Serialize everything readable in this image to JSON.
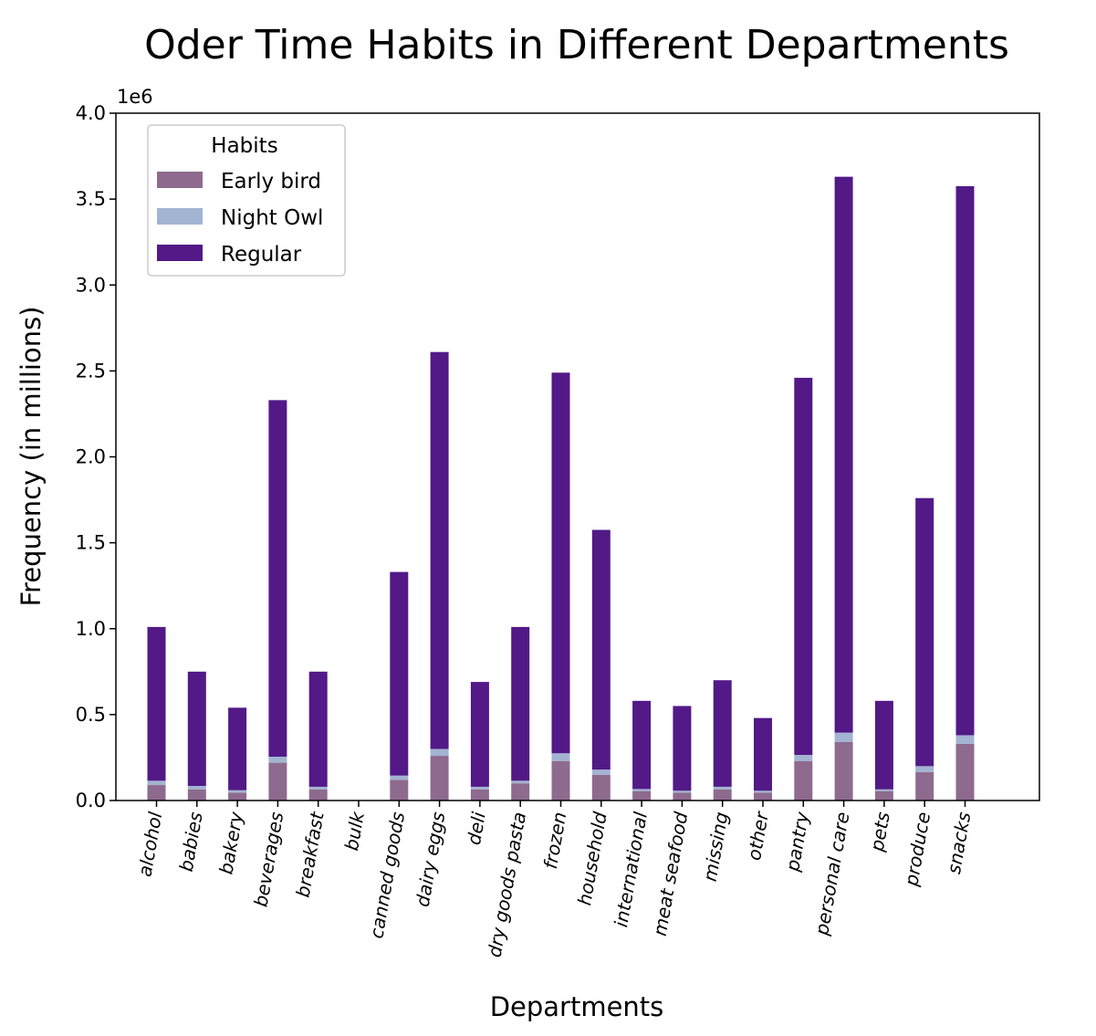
{
  "chart_data": {
    "type": "bar",
    "stacked": true,
    "title": "Oder Time Habits in Different Departments",
    "xlabel": "Departments",
    "ylabel": "Frequency (in millions)",
    "y_scale_label": "1e6",
    "ylim": [
      0,
      4000000
    ],
    "yticks": [
      {
        "value": 0,
        "label": "0.0"
      },
      {
        "value": 500000,
        "label": "0.5"
      },
      {
        "value": 1000000,
        "label": "1.0"
      },
      {
        "value": 1500000,
        "label": "1.5"
      },
      {
        "value": 2000000,
        "label": "2.0"
      },
      {
        "value": 2500000,
        "label": "2.5"
      },
      {
        "value": 3000000,
        "label": "3.0"
      },
      {
        "value": 3500000,
        "label": "3.5"
      },
      {
        "value": 4000000,
        "label": "4.0"
      }
    ],
    "grid": false,
    "categories": [
      "alcohol",
      "babies",
      "bakery",
      "beverages",
      "breakfast",
      "bulk",
      "canned goods",
      "dairy eggs",
      "deli",
      "dry goods pasta",
      "frozen",
      "household",
      "international",
      "meat seafood",
      "missing",
      "other",
      "pantry",
      "personal care",
      "pets",
      "produce",
      "snacks"
    ],
    "legend": {
      "title": "Habits",
      "position": "upper-left"
    },
    "series": [
      {
        "name": "Early bird",
        "color": "#8e6b8e",
        "values": [
          90000,
          65000,
          45000,
          220000,
          65000,
          0,
          120000,
          260000,
          65000,
          100000,
          230000,
          150000,
          55000,
          45000,
          65000,
          45000,
          230000,
          340000,
          55000,
          165000,
          330000
        ]
      },
      {
        "name": "Night Owl",
        "color": "#a3b3d2",
        "values": [
          25000,
          20000,
          15000,
          35000,
          15000,
          0,
          25000,
          40000,
          15000,
          15000,
          45000,
          30000,
          12000,
          12000,
          15000,
          12000,
          35000,
          55000,
          10000,
          35000,
          50000
        ]
      },
      {
        "name": "Regular",
        "color": "#521987",
        "values": [
          895000,
          665000,
          480000,
          2075000,
          670000,
          0,
          1185000,
          2310000,
          610000,
          895000,
          2215000,
          1395000,
          513000,
          493000,
          620000,
          423000,
          2195000,
          3235000,
          515000,
          1560000,
          3195000
        ]
      }
    ]
  }
}
